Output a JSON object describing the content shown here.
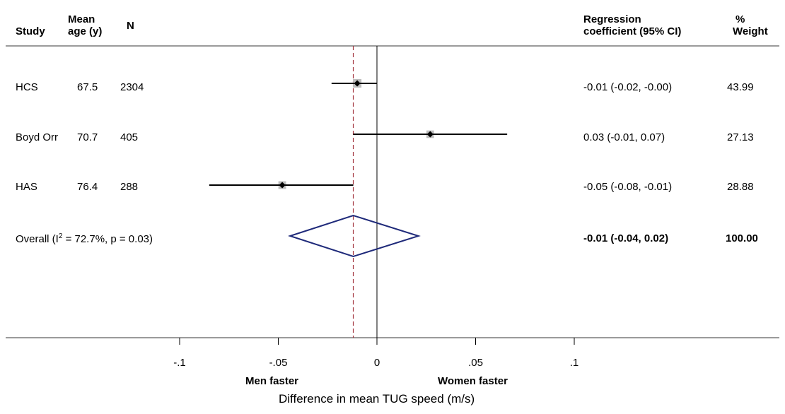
{
  "headers": {
    "study": "Study",
    "age_line1": "Mean",
    "age_line2": "age (y)",
    "n": "N",
    "coef_line1": "Regression",
    "coef_line2": "coefficient (95% CI)",
    "weight_line1": "%",
    "weight_line2": "Weight"
  },
  "rows": [
    {
      "study": "HCS",
      "age": "67.5",
      "n": "2304",
      "estimate": -0.01,
      "ci_low": -0.023,
      "ci_high": 0.0,
      "ci_text": "-0.01 (-0.02, -0.00)",
      "weight": "43.99"
    },
    {
      "study": "Boyd Orr",
      "age": "70.7",
      "n": "405",
      "estimate": 0.027,
      "ci_low": -0.012,
      "ci_high": 0.066,
      "ci_text": "0.03 (-0.01, 0.07)",
      "weight": "27.13"
    },
    {
      "study": "HAS",
      "age": "76.4",
      "n": "288",
      "estimate": -0.048,
      "ci_low": -0.085,
      "ci_high": -0.012,
      "ci_text": "-0.05 (-0.08, -0.01)",
      "weight": "28.88"
    }
  ],
  "overall": {
    "label_prefix": "Overall  (I",
    "label_sup": "2",
    "label_suffix": " = 72.7%, p = 0.03)",
    "estimate": -0.012,
    "ci_low": -0.044,
    "ci_high": 0.021,
    "ci_text": "-0.01 (-0.04, 0.02)",
    "weight": "100.00"
  },
  "chart_data": {
    "type": "forest",
    "xlabel": "Difference in mean TUG speed (m/s)",
    "xlim": [
      -0.1,
      0.1
    ],
    "ticks": [
      -0.1,
      -0.05,
      0,
      0.05,
      0.1
    ],
    "tick_labels": [
      "-.1",
      "-.05",
      "0",
      ".05",
      ".1"
    ],
    "null_line": 0,
    "overall_line": -0.012,
    "direction_left": "Men faster",
    "direction_right": "Women faster",
    "colors": {
      "diamond": "#1f2a7a",
      "overall_line": "#a0303a",
      "box": "#bdbdbd",
      "line": "#000000"
    }
  }
}
